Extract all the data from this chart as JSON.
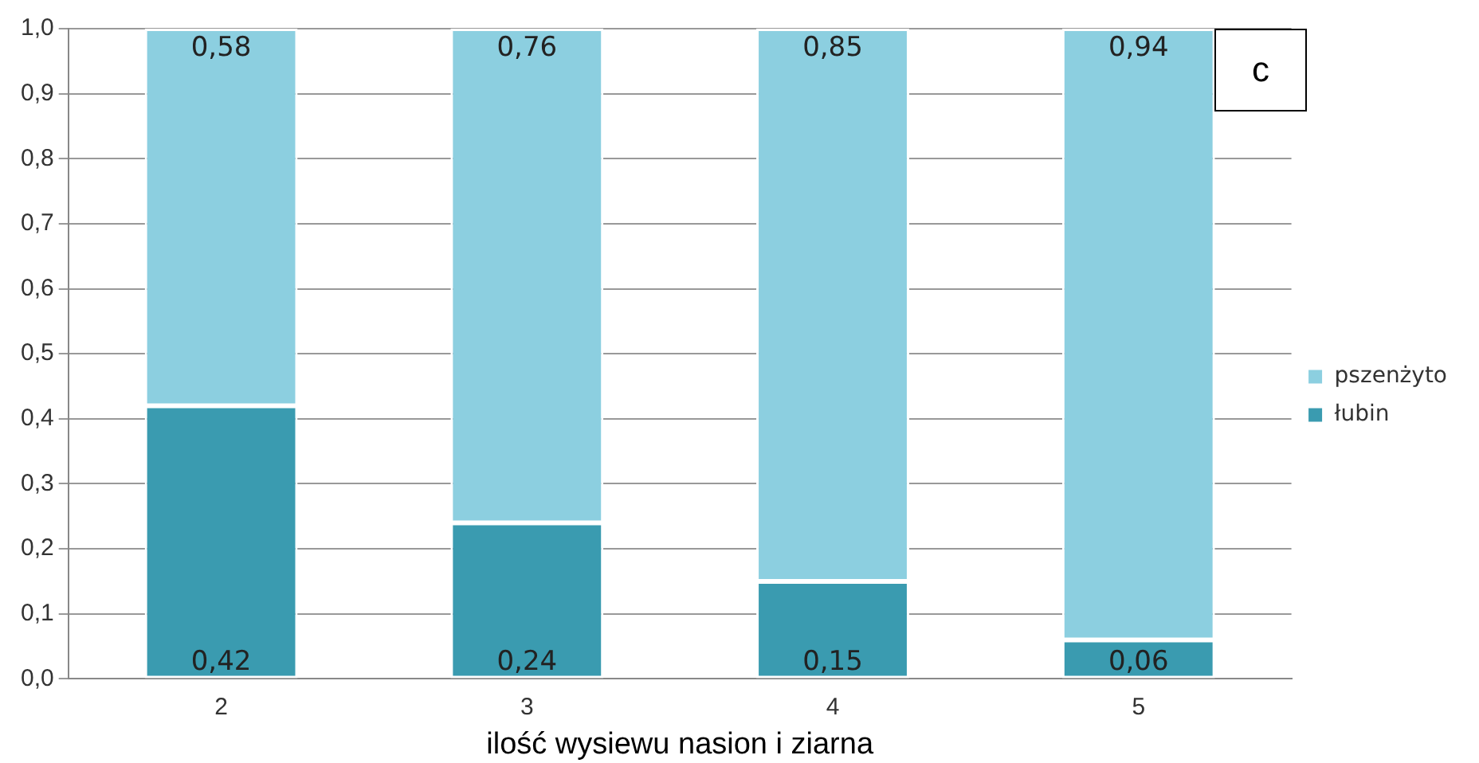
{
  "chart_data": {
    "type": "bar",
    "stacked": true,
    "categories": [
      "2",
      "3",
      "4",
      "5"
    ],
    "series": [
      {
        "name": "łubin",
        "color": "#3a9bb0",
        "values": [
          0.42,
          0.24,
          0.15,
          0.06
        ],
        "value_labels": [
          "0,42",
          "0,24",
          "0,15",
          "0,06"
        ]
      },
      {
        "name": "pszenżyto",
        "color": "#8ccfe0",
        "values": [
          0.58,
          0.76,
          0.85,
          0.94
        ],
        "value_labels": [
          "0,58",
          "0,76",
          "0,85",
          "0,94"
        ]
      }
    ],
    "xlabel": "ilość wysiewu nasion i ziarna",
    "ylim": [
      0,
      1
    ],
    "yticks": [
      {
        "value": 0,
        "label": "0,0"
      },
      {
        "value": 0.1,
        "label": "0,1"
      },
      {
        "value": 0.2,
        "label": "0,2"
      },
      {
        "value": 0.3,
        "label": "0,3"
      },
      {
        "value": 0.4,
        "label": "0,4"
      },
      {
        "value": 0.5,
        "label": "0,5"
      },
      {
        "value": 0.6,
        "label": "0,6"
      },
      {
        "value": 0.7,
        "label": "0,7"
      },
      {
        "value": 0.8,
        "label": "0,8"
      },
      {
        "value": 0.9,
        "label": "0,9"
      },
      {
        "value": 1,
        "label": "1,0"
      }
    ],
    "grid": "y",
    "legend": "right",
    "annotations": [
      "c"
    ]
  }
}
